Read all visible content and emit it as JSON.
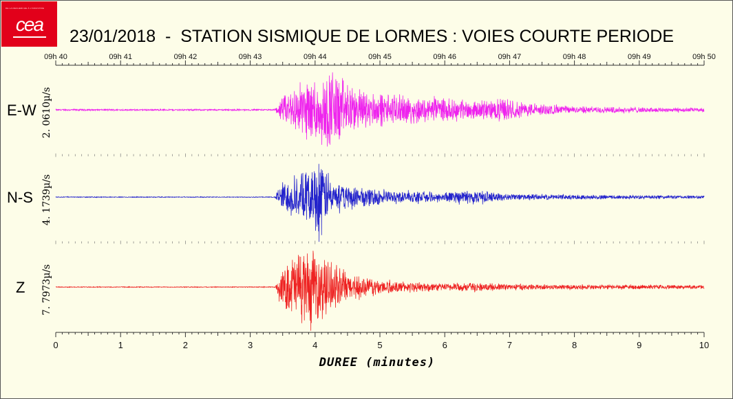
{
  "header": {
    "logo_text": "cea",
    "logo_tagline": "DE LA RECHERCHE À L'INDUSTRIE",
    "title": "23/01/2018  -  STATION SISMIQUE DE LORMES : VOIES COURTE PERIODE"
  },
  "chart_data": {
    "type": "line",
    "title": "23/01/2018  -  STATION SISMIQUE DE LORMES : VOIES COURTE PERIODE",
    "xlabel": "DUREE (minutes)",
    "xlim": [
      0,
      10
    ],
    "x_ticks": [
      "0",
      "1",
      "2",
      "3",
      "4",
      "5",
      "6",
      "7",
      "8",
      "9",
      "10"
    ],
    "time_ticks": [
      "09h 40",
      "09h 41",
      "09h 42",
      "09h 43",
      "09h 44",
      "09h 45",
      "09h 46",
      "09h 47",
      "09h 48",
      "09h 49",
      "09h 50"
    ],
    "grid": false,
    "series": [
      {
        "name": "E-W",
        "scale": "2. 0610µ/s",
        "color": "#ee22ee",
        "onset_min": 3.38,
        "peak_min": 4.3,
        "envelope": [
          {
            "t": 0.0,
            "a": 0.02
          },
          {
            "t": 3.38,
            "a": 0.02
          },
          {
            "t": 3.5,
            "a": 0.35
          },
          {
            "t": 3.8,
            "a": 0.75
          },
          {
            "t": 4.0,
            "a": 0.85
          },
          {
            "t": 4.3,
            "a": 1.0
          },
          {
            "t": 4.6,
            "a": 0.55
          },
          {
            "t": 5.0,
            "a": 0.42
          },
          {
            "t": 5.5,
            "a": 0.35
          },
          {
            "t": 6.0,
            "a": 0.28
          },
          {
            "t": 6.4,
            "a": 0.22
          },
          {
            "t": 6.9,
            "a": 0.28
          },
          {
            "t": 7.5,
            "a": 0.14
          },
          {
            "t": 8.0,
            "a": 0.09
          },
          {
            "t": 9.0,
            "a": 0.07
          },
          {
            "t": 10.0,
            "a": 0.05
          }
        ]
      },
      {
        "name": "N-S",
        "scale": "4. 1739µ/s",
        "color": "#2222cc",
        "onset_min": 3.38,
        "peak_min": 4.05,
        "envelope": [
          {
            "t": 0.0,
            "a": 0.01
          },
          {
            "t": 3.38,
            "a": 0.01
          },
          {
            "t": 3.5,
            "a": 0.45
          },
          {
            "t": 3.8,
            "a": 0.6
          },
          {
            "t": 4.0,
            "a": 0.85
          },
          {
            "t": 4.08,
            "a": 1.0
          },
          {
            "t": 4.3,
            "a": 0.4
          },
          {
            "t": 4.6,
            "a": 0.3
          },
          {
            "t": 5.0,
            "a": 0.2
          },
          {
            "t": 5.5,
            "a": 0.15
          },
          {
            "t": 6.0,
            "a": 0.12
          },
          {
            "t": 6.4,
            "a": 0.18
          },
          {
            "t": 7.0,
            "a": 0.08
          },
          {
            "t": 8.0,
            "a": 0.06
          },
          {
            "t": 10.0,
            "a": 0.04
          }
        ]
      },
      {
        "name": "Z",
        "scale": "7. 7973µ/s",
        "color": "#ee2222",
        "onset_min": 3.38,
        "peak_min": 3.9,
        "envelope": [
          {
            "t": 0.0,
            "a": 0.01
          },
          {
            "t": 3.38,
            "a": 0.01
          },
          {
            "t": 3.5,
            "a": 0.5
          },
          {
            "t": 3.7,
            "a": 0.85
          },
          {
            "t": 3.9,
            "a": 1.0
          },
          {
            "t": 4.1,
            "a": 0.8
          },
          {
            "t": 4.4,
            "a": 0.45
          },
          {
            "t": 4.8,
            "a": 0.25
          },
          {
            "t": 5.2,
            "a": 0.15
          },
          {
            "t": 6.0,
            "a": 0.1
          },
          {
            "t": 6.4,
            "a": 0.12
          },
          {
            "t": 7.0,
            "a": 0.08
          },
          {
            "t": 8.0,
            "a": 0.06
          },
          {
            "t": 10.0,
            "a": 0.05
          }
        ]
      }
    ]
  }
}
